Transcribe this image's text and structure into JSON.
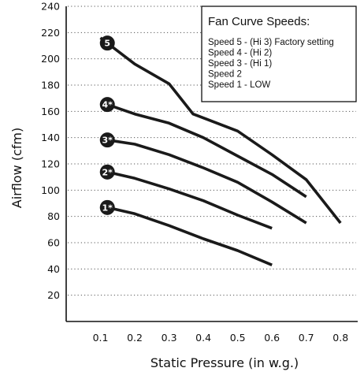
{
  "chart_data": {
    "type": "line",
    "title": "",
    "xlabel": "Static Pressure (in w.g.)",
    "ylabel": "Airflow (cfm)",
    "xlim": [
      0,
      0.85
    ],
    "ylim": [
      0,
      240
    ],
    "x_ticks": [
      "0.1",
      "0.2",
      "0.3",
      "0.4",
      "0.5",
      "0.6",
      "0.7",
      "0.8"
    ],
    "y_ticks": [
      "20",
      "40",
      "60",
      "80",
      "100",
      "120",
      "140",
      "160",
      "180",
      "200",
      "220",
      "240"
    ],
    "grid": "horizontal dotted",
    "line_color": "#1a1a1a",
    "legend": {
      "placement": "top-right",
      "title": "Fan Curve Speeds:",
      "items": [
        "Speed 5 - (Hi 3) Factory setting",
        "Speed 4 - (Hi 2)",
        "Speed 3 - (Hi 1)",
        "Speed 2",
        "Speed 1 - LOW"
      ]
    },
    "series": [
      {
        "name": "5",
        "points": [
          [
            0.1,
            216
          ],
          [
            0.2,
            196
          ],
          [
            0.3,
            181
          ],
          [
            0.37,
            158
          ],
          [
            0.5,
            145
          ],
          [
            0.6,
            127
          ],
          [
            0.7,
            108
          ],
          [
            0.8,
            75
          ]
        ]
      },
      {
        "name": "4*",
        "points": [
          [
            0.1,
            167
          ],
          [
            0.2,
            158
          ],
          [
            0.3,
            151
          ],
          [
            0.4,
            140
          ],
          [
            0.5,
            126
          ],
          [
            0.6,
            112
          ],
          [
            0.7,
            95
          ]
        ]
      },
      {
        "name": "3*",
        "points": [
          [
            0.1,
            139
          ],
          [
            0.2,
            135
          ],
          [
            0.3,
            127
          ],
          [
            0.4,
            117
          ],
          [
            0.5,
            106
          ],
          [
            0.6,
            91
          ],
          [
            0.7,
            75
          ]
        ]
      },
      {
        "name": "2*",
        "points": [
          [
            0.1,
            115
          ],
          [
            0.2,
            109
          ],
          [
            0.3,
            101
          ],
          [
            0.4,
            92
          ],
          [
            0.5,
            81
          ],
          [
            0.6,
            71
          ]
        ]
      },
      {
        "name": "1*",
        "points": [
          [
            0.1,
            88
          ],
          [
            0.2,
            82
          ],
          [
            0.3,
            73
          ],
          [
            0.4,
            63
          ],
          [
            0.5,
            54
          ],
          [
            0.6,
            43
          ]
        ]
      }
    ]
  }
}
